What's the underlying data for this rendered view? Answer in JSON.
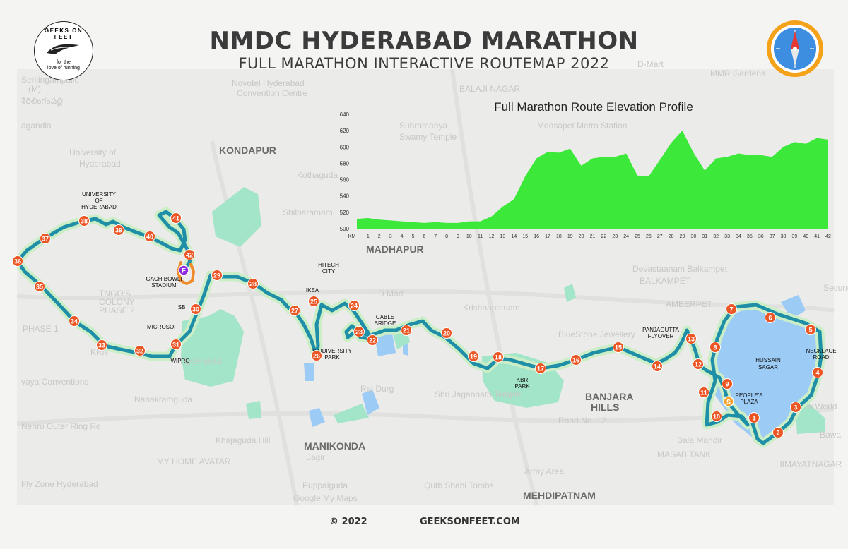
{
  "header": {
    "title": "NMDC HYDERABAD MARATHON",
    "subtitle": "FULL MARATHON INTERACTIVE ROUTEMAP 2022"
  },
  "logo": {
    "ring_text": "GEEKS ON FEET",
    "tagline_line1": "for the",
    "tagline_line2": "love of running"
  },
  "footer": {
    "copyright": "© 2022",
    "website": "GEEKSONFEET.COM"
  },
  "colors": {
    "route": "#1f8fa8",
    "route_glow": "#cbeec6",
    "marker": "#ec5524",
    "start_marker": "#f5a02a",
    "finish_marker": "#8b2bdd",
    "elevation_fill": "#3ce83a",
    "water": "#9ccbf5",
    "park": "#a3e5c8"
  },
  "background_labels": {
    "areas": [
      "KONDAPUR",
      "MADHAPUR",
      "BANJARA",
      "HILLS",
      "MANIKONDA",
      "MEHDIPATNAM"
    ],
    "faded": [
      "Serilingampalle",
      "(M)",
      "శేరిలింగంపల్లి",
      "agandla",
      "University of",
      "Hyderabad",
      "Novotel Hyderabad",
      "Convention Centre",
      "Subramanya",
      "Swamy Temple",
      "Moosapet Metro Station",
      "MMR Gardens",
      "Kothaguda",
      "Shilparamam",
      "D-Mart",
      "BALAJI NAGAR",
      "Devastaanam Balkampet",
      "BALKAMPET",
      "Krishnapatnam",
      "BlueStone Jewellery",
      "D Mart",
      "Raj Durg",
      "Shri Jagannath Temple",
      "TNGO'S",
      "COLONY",
      "PHASE 2",
      "PHASE 1",
      "vaya Conventions",
      "Nanakramguda",
      "Nehru Outer Ring Rd",
      "Khajaguda Hill",
      "MY HOME AVATAR",
      "Fly Zone Hyderabad",
      "Jagir",
      "Puppalguda",
      "Qutb Shahi Tombs",
      "Army Area",
      "Bala Mandir",
      "MASAB TANK",
      "HIMAYATNAGAR",
      "AMEERPET",
      "Secunderabad",
      "Road No. 12",
      "Snow World",
      "Hyderabad",
      "Google My Maps",
      "KRN",
      "Bawa"
    ]
  },
  "landmarks": [
    {
      "l1": "UNIVERSITY",
      "l2": "OF",
      "l3": "HYDERABAD"
    },
    {
      "l1": "GACHIBOWLI",
      "l2": "STADIUM"
    },
    {
      "l1": "ISB"
    },
    {
      "l1": "MICROSOFT"
    },
    {
      "l1": "WIPRO"
    },
    {
      "l1": "HITECH",
      "l2": "CITY"
    },
    {
      "l1": "IKEA"
    },
    {
      "l1": "CABLE",
      "l2": "BRIDGE"
    },
    {
      "l1": "BIODIVERSITY",
      "l2": "PARK"
    },
    {
      "l1": "KBR",
      "l2": "PARK"
    },
    {
      "l1": "PANJAGUTTA",
      "l2": "FLYOVER"
    },
    {
      "l1": "HUSSAIN",
      "l2": "SAGAR"
    },
    {
      "l1": "NECKLACE",
      "l2": "ROAD"
    },
    {
      "l1": "PEOPLE'S",
      "l2": "PLAZA"
    }
  ],
  "special_markers": {
    "start": "S",
    "finish": "F"
  },
  "km_markers": [
    "1",
    "2",
    "3",
    "4",
    "5",
    "6",
    "7",
    "8",
    "9",
    "10",
    "11",
    "12",
    "13",
    "14",
    "15",
    "16",
    "17",
    "18",
    "19",
    "20",
    "21",
    "22",
    "23",
    "24",
    "25",
    "26",
    "27",
    "28",
    "29",
    "30",
    "31",
    "32",
    "33",
    "34",
    "35",
    "36",
    "37",
    "38",
    "39",
    "40",
    "41",
    "42"
  ],
  "chart_data": {
    "type": "area",
    "title": "Full Marathon Route Elevation Profile",
    "xlabel": "",
    "ylabel": "",
    "x_axis_prefix": "KM",
    "xlim": [
      0,
      42
    ],
    "ylim": [
      500,
      640
    ],
    "yticks": [
      500,
      520,
      540,
      560,
      580,
      600,
      620,
      640
    ],
    "xticks": [
      1,
      2,
      3,
      4,
      5,
      6,
      7,
      8,
      9,
      10,
      11,
      12,
      13,
      14,
      15,
      16,
      17,
      18,
      19,
      20,
      21,
      22,
      23,
      24,
      25,
      26,
      27,
      28,
      29,
      30,
      31,
      32,
      33,
      34,
      35,
      36,
      37,
      38,
      39,
      40,
      41,
      42
    ],
    "grid": false,
    "legend": "none",
    "series": [
      {
        "x": [
          0,
          1,
          2,
          3,
          4,
          5,
          6,
          7,
          8,
          9,
          10,
          11,
          12,
          13,
          14,
          15,
          16,
          17,
          18,
          19,
          20,
          21,
          22,
          23,
          24,
          25,
          26,
          27,
          28,
          29,
          30,
          31,
          32,
          33,
          34,
          35,
          36,
          37,
          38,
          39,
          40,
          41,
          42
        ],
        "y": [
          512,
          513,
          511,
          510,
          509,
          508,
          507,
          508,
          507,
          507,
          509,
          509,
          515,
          527,
          536,
          564,
          586,
          594,
          593,
          598,
          577,
          586,
          588,
          588,
          592,
          565,
          564,
          584,
          605,
          620,
          593,
          571,
          586,
          588,
          592,
          590,
          590,
          588,
          600,
          606,
          604,
          611,
          609
        ]
      }
    ]
  }
}
